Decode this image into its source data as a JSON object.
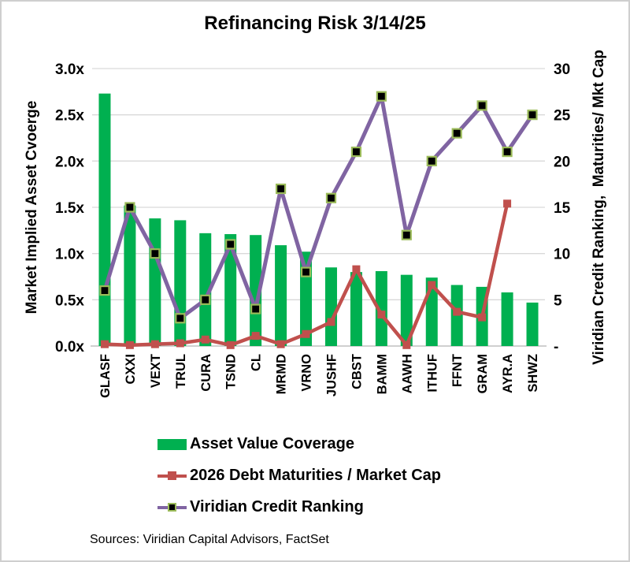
{
  "chart_data": {
    "type": "combo-bar-line",
    "title": "Refinancing Risk 3/14/25",
    "source": "Sources: Viridian Capital Advisors, FactSet",
    "grid": true,
    "legend_position": "bottom-left-stacked",
    "categories": [
      "GLASF",
      "CXXI",
      "VEXT",
      "TRUL",
      "CURA",
      "TSND",
      "CL",
      "MRMD",
      "VRNO",
      "JUSHF",
      "CBST",
      "BAMM",
      "AAWH",
      "ITHUF",
      "FFNT",
      "GRAM",
      "AYR.A",
      "SHWZ"
    ],
    "left_axis": {
      "label": "Market Implied Asset Cvoerge",
      "ticks": [
        "3.0x",
        "2.5x",
        "2.0x",
        "1.5x",
        "1.0x",
        "0.5x",
        "0.0x"
      ],
      "range": [
        0,
        3.0
      ]
    },
    "right_axis": {
      "label": "Viridian Credit Ranking,  Maturities/ Mkt Cap",
      "ticks": [
        "30",
        "25",
        "20",
        "15",
        "10",
        "5",
        "-"
      ],
      "range": [
        0,
        30
      ]
    },
    "series": [
      {
        "name": "Asset Value Coverage",
        "type": "bar",
        "axis": "left",
        "color": "#00B050",
        "values": [
          2.73,
          1.52,
          1.38,
          1.36,
          1.22,
          1.21,
          1.2,
          1.09,
          1.02,
          0.85,
          0.8,
          0.81,
          0.77,
          0.74,
          0.66,
          0.64,
          0.58,
          0.47
        ]
      },
      {
        "name": "2026 Debt Maturities / Market Cap",
        "type": "line",
        "axis": "right",
        "color": "#C0504D",
        "marker": "red-square",
        "values": [
          0.2,
          0.1,
          0.2,
          0.3,
          0.7,
          0.1,
          1.1,
          0.2,
          1.3,
          2.6,
          8.3,
          3.4,
          0.1,
          6.6,
          3.7,
          3.1,
          15.4,
          null
        ]
      },
      {
        "name": "Viridian Credit Ranking",
        "type": "line",
        "axis": "right",
        "color": "#8064A2",
        "marker": "black-square-green-border",
        "marker_fill": "#000000",
        "marker_border": "#9BBB59",
        "values": [
          6,
          15,
          10,
          3,
          5,
          11,
          4,
          17,
          8,
          16,
          21,
          27,
          12,
          20,
          23,
          26,
          21,
          25
        ]
      }
    ],
    "colors": {
      "gridline": "#D9D9D9",
      "axis_line": "#BFBFBF",
      "text": "#000000"
    }
  }
}
